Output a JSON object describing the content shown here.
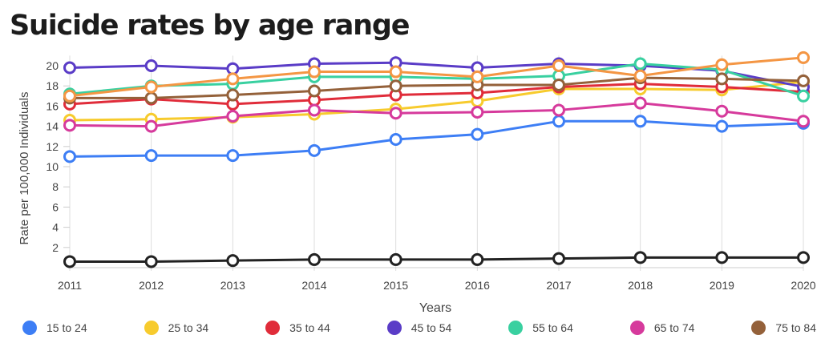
{
  "chart_data": {
    "type": "line",
    "title": "Suicide rates by age range",
    "xlabel": "Years",
    "ylabel": "Rate per 100,000 Individuals",
    "ylim": [
      0,
      21
    ],
    "yticks": [
      2,
      4,
      6,
      8,
      10,
      12,
      14,
      16,
      18,
      20
    ],
    "x": [
      "2011",
      "2012",
      "2013",
      "2014",
      "2015",
      "2016",
      "2017",
      "2018",
      "2019",
      "2020"
    ],
    "grid": true,
    "legend_position": "bottom",
    "series": [
      {
        "name": "15 to 24",
        "color": "#3d7ef5",
        "values": [
          11.0,
          11.1,
          11.1,
          11.6,
          12.7,
          13.2,
          14.5,
          14.5,
          14.0,
          14.3
        ]
      },
      {
        "name": "25 to 34",
        "color": "#f7cb2d",
        "values": [
          14.6,
          14.7,
          14.9,
          15.2,
          15.7,
          16.5,
          17.7,
          17.7,
          17.6,
          18.4
        ]
      },
      {
        "name": "35 to 44",
        "color": "#e02c3a",
        "values": [
          16.2,
          16.7,
          16.2,
          16.6,
          17.1,
          17.3,
          17.9,
          18.2,
          17.9,
          17.4
        ]
      },
      {
        "name": "45 to 54",
        "color": "#5a3cc7",
        "values": [
          19.8,
          20.0,
          19.7,
          20.2,
          20.3,
          19.8,
          20.2,
          20.0,
          19.5,
          17.9
        ]
      },
      {
        "name": "55 to 64",
        "color": "#39d0a0",
        "values": [
          17.2,
          18.0,
          18.2,
          18.9,
          18.9,
          18.7,
          19.0,
          20.2,
          19.6,
          17.0
        ]
      },
      {
        "name": "65 to 74",
        "color": "#d63a9c",
        "values": [
          14.1,
          14.0,
          15.0,
          15.6,
          15.3,
          15.4,
          15.6,
          16.3,
          15.5,
          14.5
        ]
      },
      {
        "name": "75 to 84",
        "color": "#94613a",
        "values": [
          16.8,
          16.8,
          17.1,
          17.5,
          18.0,
          18.1,
          18.1,
          18.8,
          18.7,
          18.5
        ]
      },
      {
        "name": "",
        "color": "#f49644",
        "values": [
          17.0,
          17.9,
          18.7,
          19.4,
          19.4,
          18.9,
          20.0,
          19.0,
          20.1,
          20.8
        ]
      },
      {
        "name": "",
        "color": "#222222",
        "values": [
          0.6,
          0.6,
          0.7,
          0.8,
          0.8,
          0.8,
          0.9,
          1.0,
          1.0,
          1.0
        ]
      }
    ]
  }
}
